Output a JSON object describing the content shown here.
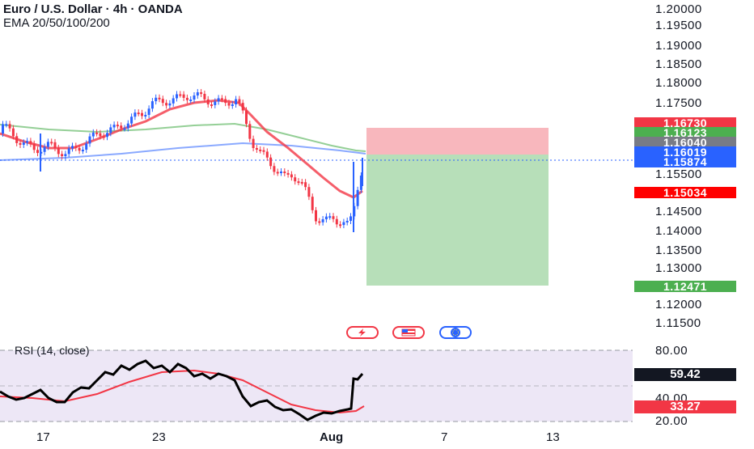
{
  "header": {
    "title": "Euro / U.S. Dollar · 4h · OANDA",
    "indicators": "EMA 20/50/100/200"
  },
  "price_axis": {
    "labels": [
      "1.20000",
      "1.19500",
      "1.19000",
      "1.18500",
      "1.18000",
      "1.17500",
      "1.15500",
      "1.14500",
      "1.14000",
      "1.13500",
      "1.13000",
      "1.12000",
      "1.11500"
    ],
    "tags": [
      {
        "text": "1.16730",
        "color": "#f23645"
      },
      {
        "text": "1.16123",
        "color": "#4caf50"
      },
      {
        "text": "1.16040",
        "color": "#787b86"
      },
      {
        "text": "1.16019",
        "color": "#2962ff"
      },
      {
        "text": "1.15874",
        "color": "#2962ff"
      },
      {
        "text": "1.15034",
        "color": "#ff0000"
      },
      {
        "text": "1.12471",
        "color": "#4caf50"
      }
    ]
  },
  "rsi": {
    "label": "RSI (14, close)",
    "axis_labels": [
      "80.00",
      "40.00",
      "20.00"
    ],
    "value_tag": "59.42",
    "ma_tag": "33.27"
  },
  "x_axis": {
    "labels": [
      "17",
      "23",
      "Aug",
      "7",
      "13"
    ]
  },
  "events": [
    "lightning-icon",
    "us-flag-icon",
    "eu-flag-icon"
  ],
  "colors": {
    "up": "#2962ff",
    "down": "#f23645",
    "ema20": "#f23645",
    "ema50": "#4caf50",
    "ema100": "#2962ff",
    "stop_zone": "#f8b7bd",
    "target_zone": "#b7dfb9",
    "rsi_bg": "#ede7f6"
  }
}
